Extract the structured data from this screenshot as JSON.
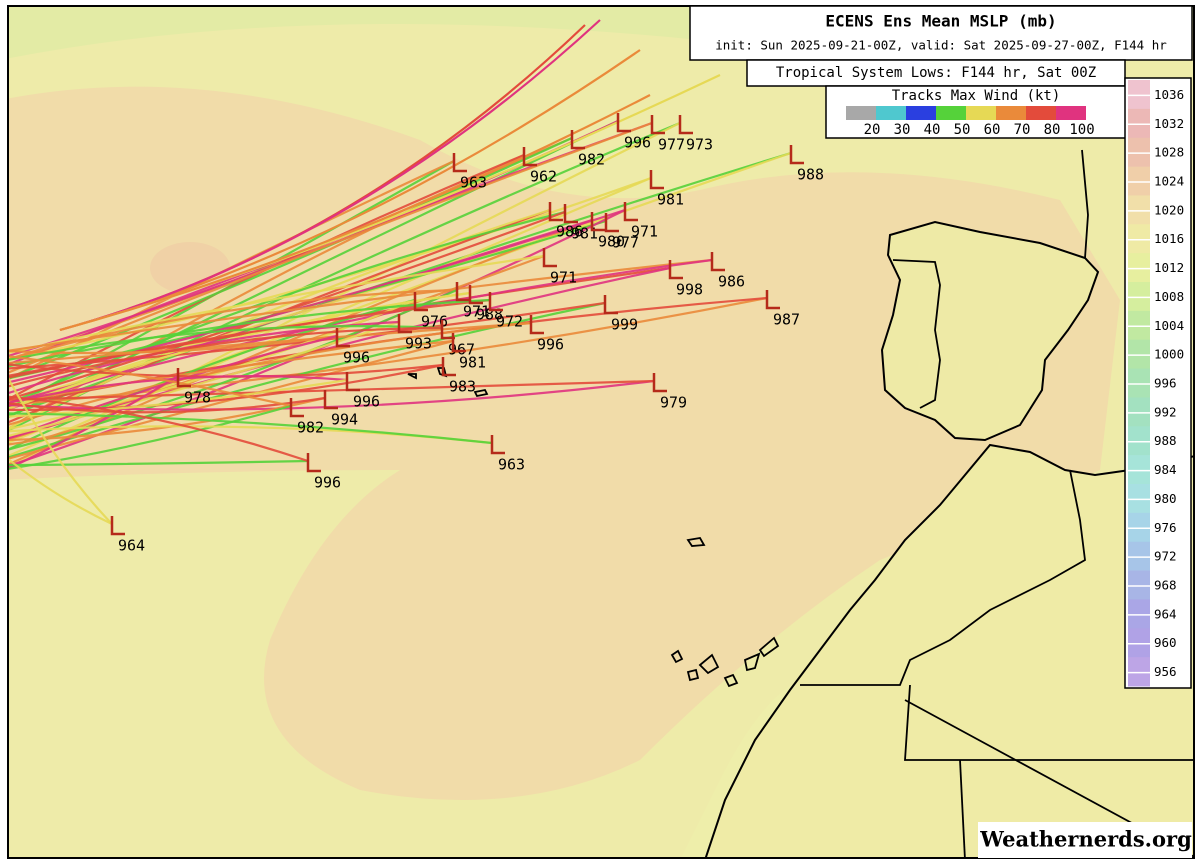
{
  "header": {
    "title": "ECENS Ens Mean MSLP (mb)",
    "subtitle": "init: Sun 2025-09-21-00Z, valid: Sat 2025-09-27-00Z, F144 hr"
  },
  "system_label": "Tropical System Lows: F144 hr, Sat 00Z",
  "wind_legend": {
    "title": "Tracks Max Wind (kt)",
    "items": [
      {
        "label": "20",
        "color": "#a8a8a8"
      },
      {
        "label": "30",
        "color": "#4fc8cf"
      },
      {
        "label": "40",
        "color": "#2a3fe0"
      },
      {
        "label": "50",
        "color": "#55d23a"
      },
      {
        "label": "60",
        "color": "#e6d955"
      },
      {
        "label": "70",
        "color": "#ea8a3a"
      },
      {
        "label": "80",
        "color": "#e34b3b"
      },
      {
        "label": "100",
        "color": "#e0337f"
      }
    ]
  },
  "pressure_scale": {
    "labels": [
      "1036",
      "1032",
      "1028",
      "1024",
      "1020",
      "1016",
      "1012",
      "1008",
      "1004",
      "1000",
      "996",
      "992",
      "988",
      "984",
      "980",
      "976",
      "972",
      "968",
      "964",
      "960",
      "956"
    ],
    "colors": [
      "#efc3cf",
      "#ecb8b6",
      "#edc1ad",
      "#f0cfa9",
      "#f1dfa9",
      "#efeaa5",
      "#e7ef9f",
      "#d5ee9e",
      "#c1e9a1",
      "#b2e5a8",
      "#a9e3b4",
      "#a3e1c0",
      "#a2e2cc",
      "#a6e4d9",
      "#a8e0e2",
      "#a7d4e8",
      "#a7c5e8",
      "#a8b5e6",
      "#aaa6e6",
      "#b0a2e6",
      "#bda5e6"
    ]
  },
  "lows": [
    "963",
    "962",
    "982",
    "996",
    "977",
    "973",
    "988",
    "981",
    "986",
    "981",
    "980",
    "977",
    "971",
    "971",
    "998",
    "986",
    "987",
    "999",
    "976",
    "971",
    "988",
    "972",
    "996",
    "996",
    "993",
    "967",
    "981",
    "983",
    "979",
    "978",
    "996",
    "994",
    "982",
    "963",
    "996",
    "964"
  ],
  "watermark": "Weathernerds.org"
}
